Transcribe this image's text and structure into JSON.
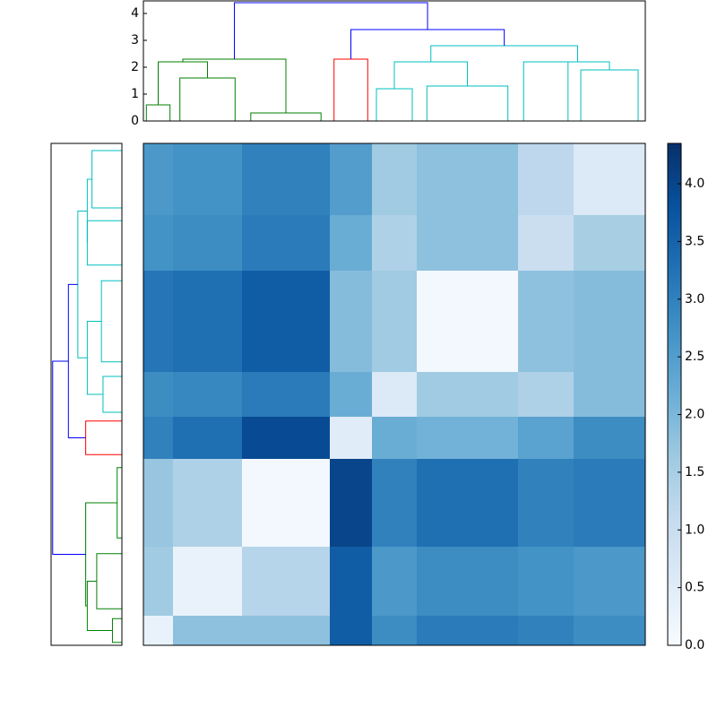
{
  "chart_data": {
    "type": "heatmap",
    "matrix": [
      [
        2.6,
        2.7,
        3.0,
        2.5,
        1.6,
        1.8,
        1.2,
        0.6
      ],
      [
        2.7,
        2.8,
        3.1,
        2.2,
        1.4,
        1.8,
        1.0,
        1.5
      ],
      [
        3.2,
        3.3,
        3.6,
        1.9,
        1.6,
        0.1,
        1.8,
        1.9
      ],
      [
        2.8,
        2.9,
        3.1,
        2.2,
        0.6,
        1.6,
        1.4,
        1.9
      ],
      [
        3.0,
        3.3,
        3.9,
        0.5,
        2.2,
        2.1,
        2.4,
        2.8
      ],
      [
        1.7,
        1.4,
        0.1,
        4.0,
        3.0,
        3.3,
        3.0,
        3.1
      ],
      [
        1.6,
        0.3,
        1.3,
        3.6,
        2.6,
        2.8,
        2.7,
        2.6
      ],
      [
        0.3,
        1.8,
        1.8,
        3.6,
        2.8,
        3.1,
        3.0,
        2.8
      ]
    ],
    "clim": [
      0,
      4.35
    ],
    "cticks": [
      {
        "value": 0,
        "label": "0.0"
      },
      {
        "value": 0.5,
        "label": "0.5"
      },
      {
        "value": 1,
        "label": "1.0"
      },
      {
        "value": 1.5,
        "label": "1.5"
      },
      {
        "value": 2,
        "label": "2.0"
      },
      {
        "value": 2.5,
        "label": "2.5"
      },
      {
        "value": 3,
        "label": "3.0"
      },
      {
        "value": 3.5,
        "label": "3.5"
      },
      {
        "value": 4,
        "label": "4.0"
      }
    ],
    "dendrogram": {
      "ylim": [
        0,
        4.5
      ],
      "yticks": [
        0,
        1,
        2,
        3,
        4
      ],
      "leaf_heights": [
        0.6,
        1.6,
        0.3,
        2.3,
        1.2,
        1.3,
        2.2,
        1.9
      ],
      "leaf_colors": [
        "#008000",
        "#008000",
        "#008000",
        "#ff0000",
        "#00bfbf",
        "#00bfbf",
        "#00bfbf",
        "#00bfbf"
      ],
      "links": [
        {
          "children": [
            0,
            1
          ],
          "height": 2.2,
          "color": "#008000"
        },
        {
          "children": [
            8,
            2
          ],
          "height": 2.3,
          "color": "#008000"
        },
        {
          "children": [
            4,
            5
          ],
          "height": 2.2,
          "color": "#00bfbf"
        },
        {
          "children": [
            6,
            7
          ],
          "height": 2.2,
          "color": "#00bfbf"
        },
        {
          "children": [
            10,
            11
          ],
          "height": 2.8,
          "color": "#00bfbf"
        },
        {
          "children": [
            3,
            12
          ],
          "height": 3.4,
          "color": "#0000ff"
        },
        {
          "children": [
            9,
            13
          ],
          "height": 4.4,
          "color": "#0000ff"
        }
      ]
    }
  }
}
